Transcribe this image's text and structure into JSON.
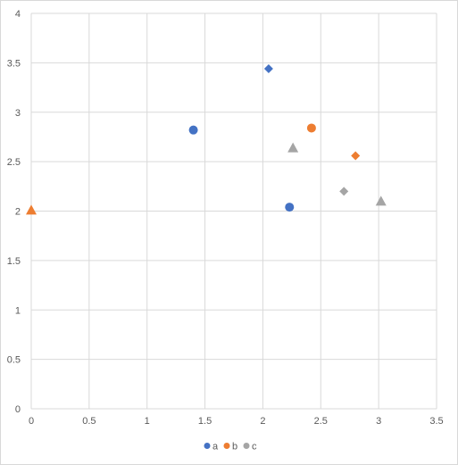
{
  "chart_data": {
    "type": "scatter",
    "title": "",
    "xlabel": "",
    "ylabel": "",
    "xlim": [
      0,
      3.5
    ],
    "ylim": [
      0,
      4
    ],
    "x_ticks": [
      "0",
      "0.5",
      "1",
      "1.5",
      "2",
      "2.5",
      "3",
      "3.5"
    ],
    "y_ticks": [
      "0",
      "0.5",
      "1",
      "1.5",
      "2",
      "2.5",
      "3",
      "3.5",
      "4"
    ],
    "grid": true,
    "legend_position": "bottom",
    "series": [
      {
        "name": "a",
        "color": "#4472c4",
        "points": [
          {
            "x": 1.4,
            "y": 2.82,
            "marker": "circle"
          },
          {
            "x": 2.23,
            "y": 2.04,
            "marker": "circle"
          },
          {
            "x": 2.05,
            "y": 3.44,
            "marker": "diamond"
          }
        ]
      },
      {
        "name": "b",
        "color": "#ed7d31",
        "points": [
          {
            "x": 2.42,
            "y": 2.84,
            "marker": "circle"
          },
          {
            "x": 2.8,
            "y": 2.56,
            "marker": "diamond"
          },
          {
            "x": 0.0,
            "y": 2.01,
            "marker": "triangle"
          }
        ]
      },
      {
        "name": "c",
        "color": "#a5a5a5",
        "points": [
          {
            "x": 2.7,
            "y": 2.2,
            "marker": "diamond"
          },
          {
            "x": 2.26,
            "y": 2.64,
            "marker": "triangle"
          },
          {
            "x": 3.02,
            "y": 2.1,
            "marker": "triangle"
          }
        ]
      }
    ]
  }
}
